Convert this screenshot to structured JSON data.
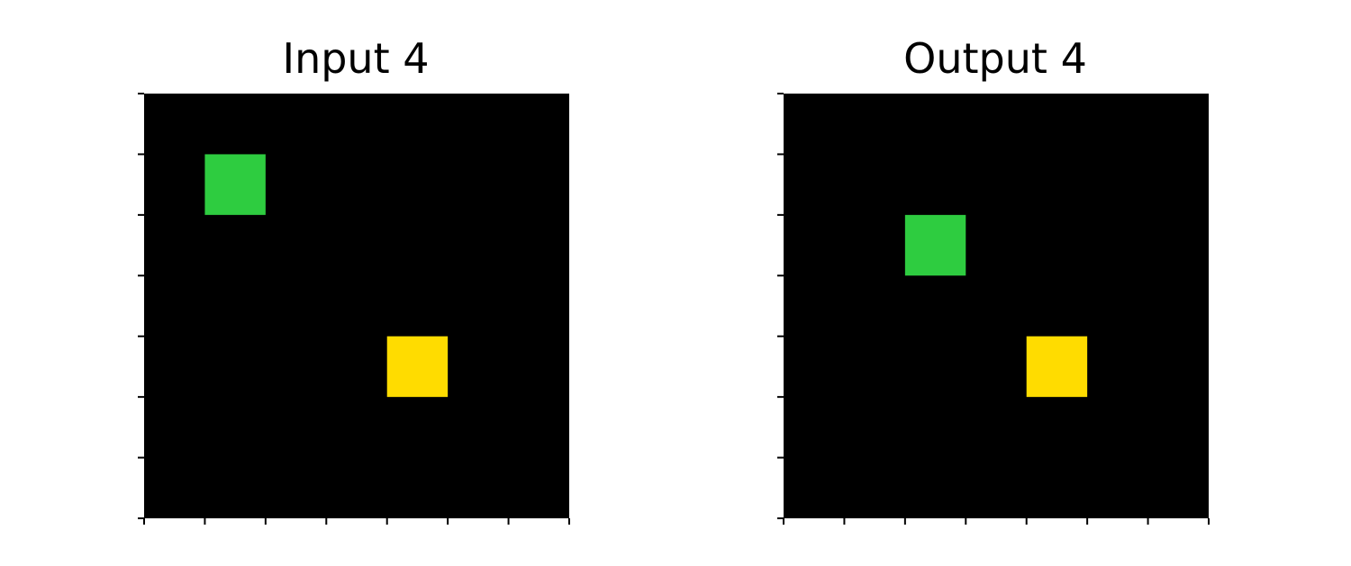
{
  "colors": {
    "background": "#000000",
    "green": "#2ECC40",
    "yellow": "#FFDC00"
  },
  "panels": [
    {
      "title": "Input 4",
      "rows": 7,
      "cols": 7,
      "cells": [
        {
          "row": 1,
          "col": 1,
          "color": "green"
        },
        {
          "row": 4,
          "col": 4,
          "color": "yellow"
        }
      ]
    },
    {
      "title": "Output 4",
      "rows": 7,
      "cols": 7,
      "cells": [
        {
          "row": 2,
          "col": 2,
          "color": "green"
        },
        {
          "row": 4,
          "col": 4,
          "color": "yellow"
        }
      ]
    }
  ]
}
